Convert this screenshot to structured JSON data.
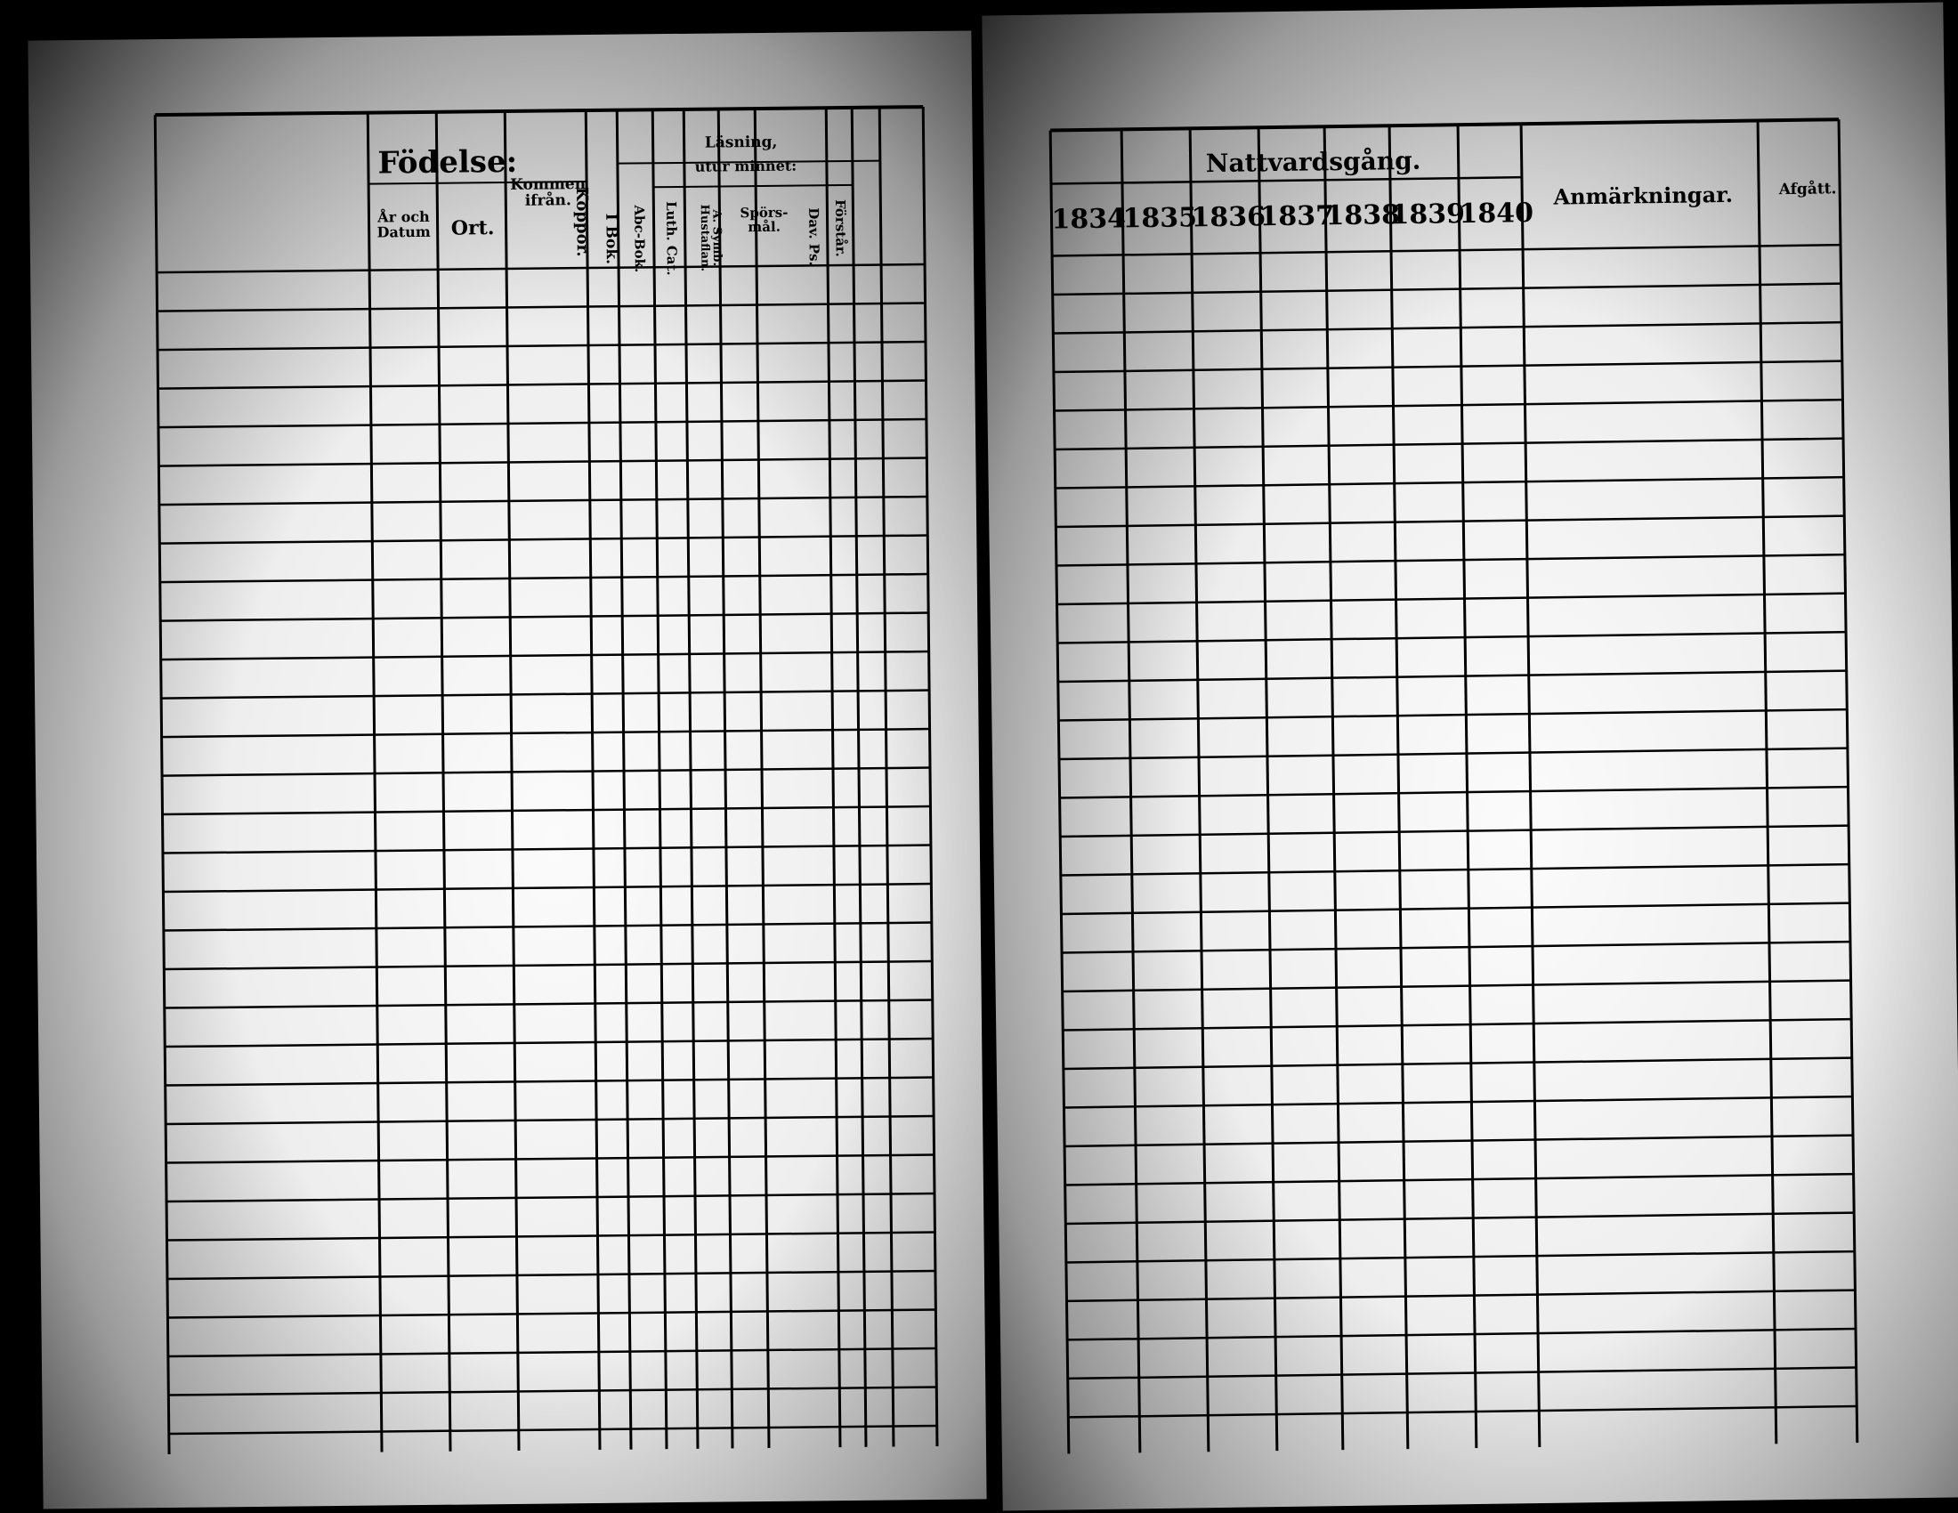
{
  "left_page": {
    "headers": {
      "fodelse": "Födelse:",
      "ar_datum": "År och Datum",
      "ort": "Ort.",
      "kommen": "Kommen ifrån.",
      "koppor": "Koppor.",
      "lasning": "Läsning,",
      "utur_minnet": "utur minnet:",
      "i_bok": "I Bok.",
      "abc_bok": "Abc-Bok.",
      "luth_cat": "Luth. Cat.",
      "symb": "A. Symb. Hustaflan.",
      "sporsmal": "Spörs-mål.",
      "dav_ps": "Dav. Ps.",
      "forstar": "Förstår."
    }
  },
  "right_page": {
    "headers": {
      "nattvardsgang": "Nattvardsgång.",
      "years": [
        "1834",
        "1835",
        "1836",
        "1837",
        "1838",
        "1839",
        "1840"
      ],
      "anmarkningar": "Anmärkningar.",
      "afgatt": "Afgått."
    }
  },
  "colors": {
    "paper": "#f5f5f5",
    "ink": "#000000",
    "background": "#000000"
  }
}
